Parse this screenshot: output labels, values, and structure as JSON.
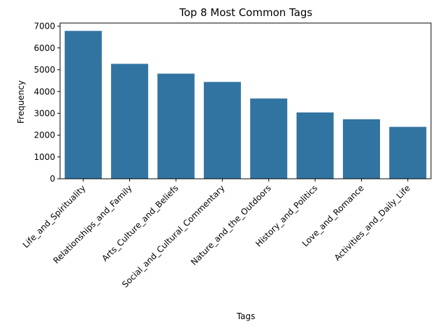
{
  "chart_data": {
    "type": "bar",
    "title": "Top 8 Most Common Tags",
    "xlabel": "Tags",
    "ylabel": "Frequency",
    "categories": [
      "Life_and_Spirituality",
      "Relationships_and_Family",
      "Arts_Culture_and_Beliefs",
      "Social_and_Cultural_Commentary",
      "Nature_and_the_Outdoors",
      "History_and_Politics",
      "Love_and_Romance",
      "Activities_and_Daily_Life"
    ],
    "values": [
      6780,
      5270,
      4820,
      4440,
      3680,
      3040,
      2730,
      2380
    ],
    "ylim": [
      0,
      7140
    ],
    "yticks": [
      0,
      1000,
      2000,
      3000,
      4000,
      5000,
      6000,
      7000
    ],
    "bar_color": "#3274a1",
    "grid": false,
    "legend": "none"
  }
}
